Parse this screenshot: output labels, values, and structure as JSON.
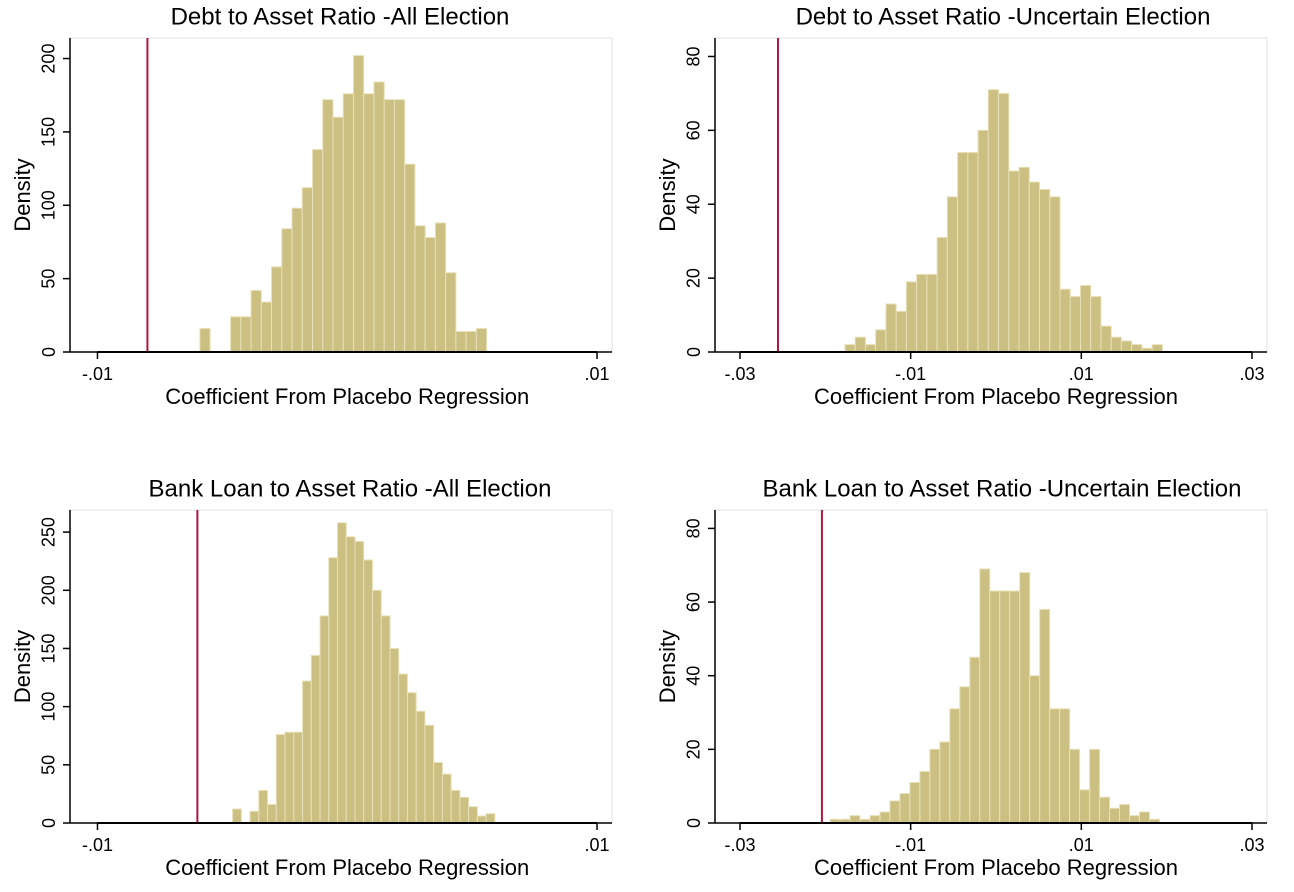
{
  "chart_data": [
    {
      "type": "histogram",
      "title": "Debt to Asset Ratio -All Election",
      "xlabel": "Coefficient From Placebo Regression",
      "ylabel": "Density",
      "color": "#cbbf82",
      "edge_color": "#e8e0b8",
      "vline": {
        "value": -0.008,
        "color": "#b2163f"
      },
      "xlim": [
        -0.0111,
        0.0106
      ],
      "xticks": [
        {
          "value": -0.01,
          "label": "-.01"
        },
        {
          "value": 0.01,
          "label": ".01"
        }
      ],
      "ylim": [
        0,
        214
      ],
      "yticks": [
        0,
        50,
        100,
        150,
        200
      ],
      "bins": [
        -0.0059,
        -0.00549,
        -0.00508,
        -0.00467,
        -0.00426,
        -0.00385,
        -0.00344,
        -0.00303,
        -0.00262,
        -0.00221,
        -0.0018,
        -0.00139,
        -0.00098,
        -0.00057,
        -0.00016,
        0.00025,
        0.00066,
        0.00107,
        0.00148,
        0.00189,
        0.0023,
        0.00271,
        0.00312,
        0.00353,
        0.00394,
        0.00435,
        0.00476,
        0.00517,
        0.00558
      ],
      "values": [
        16,
        0,
        0,
        24,
        24,
        42,
        34,
        58,
        84,
        98,
        112,
        138,
        172,
        160,
        176,
        202,
        176,
        184,
        172,
        172,
        128,
        86,
        78,
        88,
        54,
        14,
        14,
        16
      ]
    },
    {
      "type": "histogram",
      "title": "Debt to Asset Ratio -Uncertain Election",
      "xlabel": "Coefficient From Placebo Regression",
      "ylabel": "Density",
      "color": "#cbbf82",
      "edge_color": "#e8e0b8",
      "vline": {
        "value": -0.02555,
        "color": "#b2163f"
      },
      "xlim": [
        -0.03293,
        0.03176
      ],
      "xticks": [
        {
          "value": -0.03,
          "label": "-.03"
        },
        {
          "value": -0.01,
          "label": "-.01"
        },
        {
          "value": 0.01,
          "label": ".01"
        },
        {
          "value": 0.03,
          "label": ".03"
        }
      ],
      "ylim": [
        0,
        85
      ],
      "yticks": [
        0,
        20,
        40,
        60,
        80
      ],
      "bins": [
        -0.0177,
        -0.0165,
        -0.0153,
        -0.0141,
        -0.0129,
        -0.0117,
        -0.0105,
        -0.0093,
        -0.0081,
        -0.0069,
        -0.0057,
        -0.0045,
        -0.0033,
        -0.0021,
        -0.0009,
        0.0003,
        0.0015,
        0.0027,
        0.0039,
        0.0051,
        0.0063,
        0.0075,
        0.0087,
        0.0099,
        0.0111,
        0.0123,
        0.0135,
        0.0147,
        0.0159,
        0.0171,
        0.0183,
        0.0195
      ],
      "values": [
        2,
        4,
        2,
        6,
        13,
        11,
        19,
        21,
        21,
        31,
        42,
        54,
        54,
        60,
        71,
        70,
        49,
        50,
        46,
        44,
        42,
        17,
        15,
        18,
        15,
        7,
        4,
        3,
        2,
        1,
        2
      ]
    },
    {
      "type": "histogram",
      "title": "Bank Loan to Asset Ratio -All Election",
      "xlabel": "Coefficient From Placebo Regression",
      "ylabel": "Density",
      "color": "#cbbf82",
      "edge_color": "#e8e0b8",
      "vline": {
        "value": -0.006,
        "color": "#b2163f"
      },
      "xlim": [
        -0.0111,
        0.0106
      ],
      "xticks": [
        {
          "value": -0.01,
          "label": "-.01"
        },
        {
          "value": 0.01,
          "label": ".01"
        }
      ],
      "ylim": [
        0,
        269
      ],
      "yticks": [
        0,
        50,
        100,
        150,
        200,
        250
      ],
      "bins": [
        -0.00459,
        -0.00424,
        -0.00389,
        -0.00354,
        -0.00319,
        -0.00284,
        -0.00249,
        -0.00214,
        -0.00179,
        -0.00144,
        -0.00109,
        -0.00074,
        -0.00039,
        -4e-05,
        0.00031,
        0.00066,
        0.00101,
        0.00136,
        0.00171,
        0.00206,
        0.00241,
        0.00276,
        0.00311,
        0.00346,
        0.00381,
        0.00416,
        0.00451,
        0.00486,
        0.00521,
        0.00556,
        0.00591
      ],
      "values": [
        12,
        0,
        10,
        28,
        16,
        76,
        78,
        78,
        122,
        144,
        178,
        228,
        258,
        246,
        242,
        226,
        200,
        178,
        150,
        128,
        112,
        96,
        84,
        52,
        42,
        28,
        22,
        14,
        6,
        8
      ]
    },
    {
      "type": "histogram",
      "title": "Bank Loan to Asset Ratio -Uncertain Election",
      "xlabel": "Coefficient From Placebo Regression",
      "ylabel": "Density",
      "color": "#cbbf82",
      "edge_color": "#e8e0b8",
      "vline": {
        "value": -0.0204,
        "color": "#b2163f"
      },
      "xlim": [
        -0.03293,
        0.03176
      ],
      "xticks": [
        {
          "value": -0.03,
          "label": "-.03"
        },
        {
          "value": -0.01,
          "label": "-.01"
        },
        {
          "value": 0.01,
          "label": ".01"
        },
        {
          "value": 0.03,
          "label": ".03"
        }
      ],
      "ylim": [
        0,
        85
      ],
      "yticks": [
        0,
        20,
        40,
        60,
        80
      ],
      "bins": [
        -0.01945,
        -0.01828,
        -0.01711,
        -0.01594,
        -0.01477,
        -0.0136,
        -0.01243,
        -0.01126,
        -0.01009,
        -0.00892,
        -0.00775,
        -0.00658,
        -0.00541,
        -0.00424,
        -0.00307,
        -0.0019,
        -0.00073,
        0.00044,
        0.00161,
        0.00278,
        0.00395,
        0.00512,
        0.00629,
        0.00746,
        0.00863,
        0.0098,
        0.01097,
        0.01214,
        0.01331,
        0.01448,
        0.01565,
        0.01682,
        0.01799,
        0.01916
      ],
      "values": [
        1,
        1,
        2,
        1,
        2,
        3,
        6,
        8,
        11,
        14,
        20,
        22,
        31,
        37,
        45,
        69,
        63,
        63,
        63,
        68,
        40,
        58,
        31,
        31,
        20,
        9,
        20,
        7,
        4,
        5,
        2,
        3,
        1
      ]
    }
  ]
}
